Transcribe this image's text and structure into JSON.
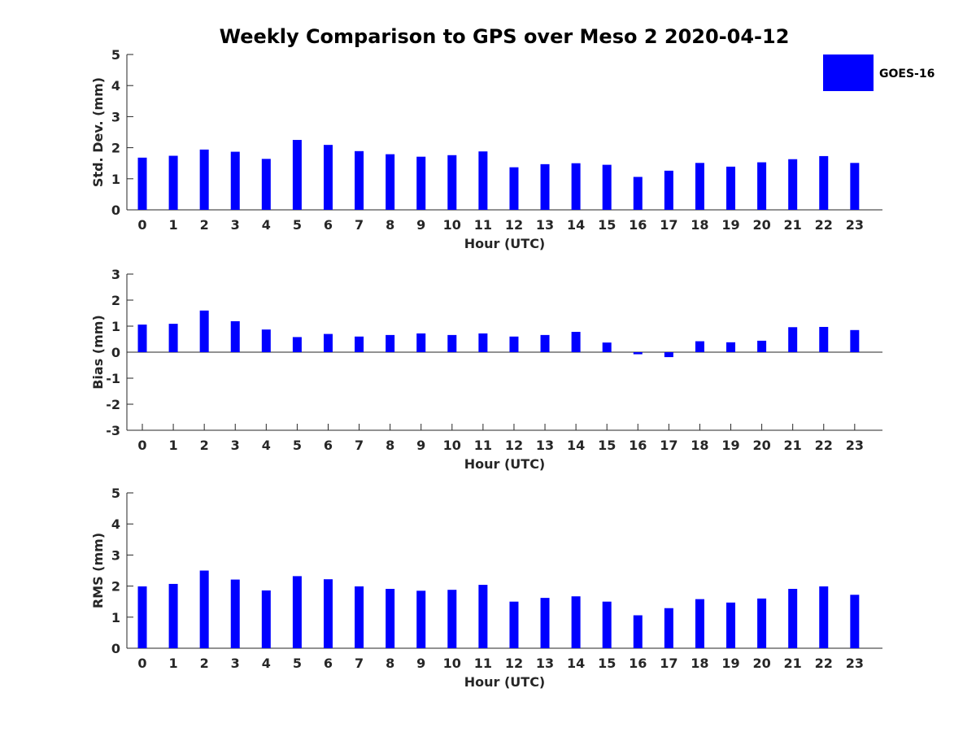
{
  "figure": {
    "title": "Weekly Comparison to GPS over Meso 2 2020-04-12",
    "bar_color": "#0000ff",
    "legend": {
      "label": "GOES-16",
      "placement": "top-right"
    }
  },
  "chart_data": [
    {
      "type": "bar",
      "title": "Weekly Comparison to GPS over Meso 2 2020-04-12",
      "xlabel": "Hour (UTC)",
      "ylabel": "Std. Dev. (mm)",
      "categories": [
        "0",
        "1",
        "2",
        "3",
        "4",
        "5",
        "6",
        "7",
        "8",
        "9",
        "10",
        "11",
        "12",
        "13",
        "14",
        "15",
        "16",
        "17",
        "18",
        "19",
        "20",
        "21",
        "22",
        "23"
      ],
      "ylim": [
        0,
        5
      ],
      "yticks": [
        "0",
        "1",
        "2",
        "3",
        "4",
        "5"
      ],
      "series": [
        {
          "name": "GOES-16",
          "values": [
            1.68,
            1.74,
            1.94,
            1.87,
            1.64,
            2.25,
            2.09,
            1.89,
            1.79,
            1.71,
            1.76,
            1.88,
            1.37,
            1.47,
            1.5,
            1.45,
            1.06,
            1.26,
            1.51,
            1.39,
            1.53,
            1.63,
            1.73,
            1.51
          ]
        }
      ]
    },
    {
      "type": "bar",
      "xlabel": "Hour (UTC)",
      "ylabel": "Bias (mm)",
      "categories": [
        "0",
        "1",
        "2",
        "3",
        "4",
        "5",
        "6",
        "7",
        "8",
        "9",
        "10",
        "11",
        "12",
        "13",
        "14",
        "15",
        "16",
        "17",
        "18",
        "19",
        "20",
        "21",
        "22",
        "23"
      ],
      "ylim": [
        -3,
        3
      ],
      "yticks": [
        "-3",
        "-2",
        "-1",
        "0",
        "1",
        "2",
        "3"
      ],
      "series": [
        {
          "name": "GOES-16",
          "values": [
            1.06,
            1.09,
            1.6,
            1.19,
            0.87,
            0.58,
            0.7,
            0.6,
            0.66,
            0.72,
            0.66,
            0.72,
            0.6,
            0.66,
            0.78,
            0.37,
            -0.08,
            -0.19,
            0.42,
            0.38,
            0.44,
            0.96,
            0.97,
            0.85
          ]
        }
      ]
    },
    {
      "type": "bar",
      "xlabel": "Hour (UTC)",
      "ylabel": "RMS (mm)",
      "categories": [
        "0",
        "1",
        "2",
        "3",
        "4",
        "5",
        "6",
        "7",
        "8",
        "9",
        "10",
        "11",
        "12",
        "13",
        "14",
        "15",
        "16",
        "17",
        "18",
        "19",
        "20",
        "21",
        "22",
        "23"
      ],
      "ylim": [
        0,
        5
      ],
      "yticks": [
        "0",
        "1",
        "2",
        "3",
        "4",
        "5"
      ],
      "series": [
        {
          "name": "GOES-16",
          "values": [
            1.99,
            2.07,
            2.5,
            2.21,
            1.86,
            2.32,
            2.22,
            1.99,
            1.91,
            1.85,
            1.88,
            2.04,
            1.5,
            1.62,
            1.67,
            1.5,
            1.06,
            1.29,
            1.58,
            1.47,
            1.6,
            1.91,
            1.99,
            1.72
          ]
        }
      ]
    }
  ]
}
